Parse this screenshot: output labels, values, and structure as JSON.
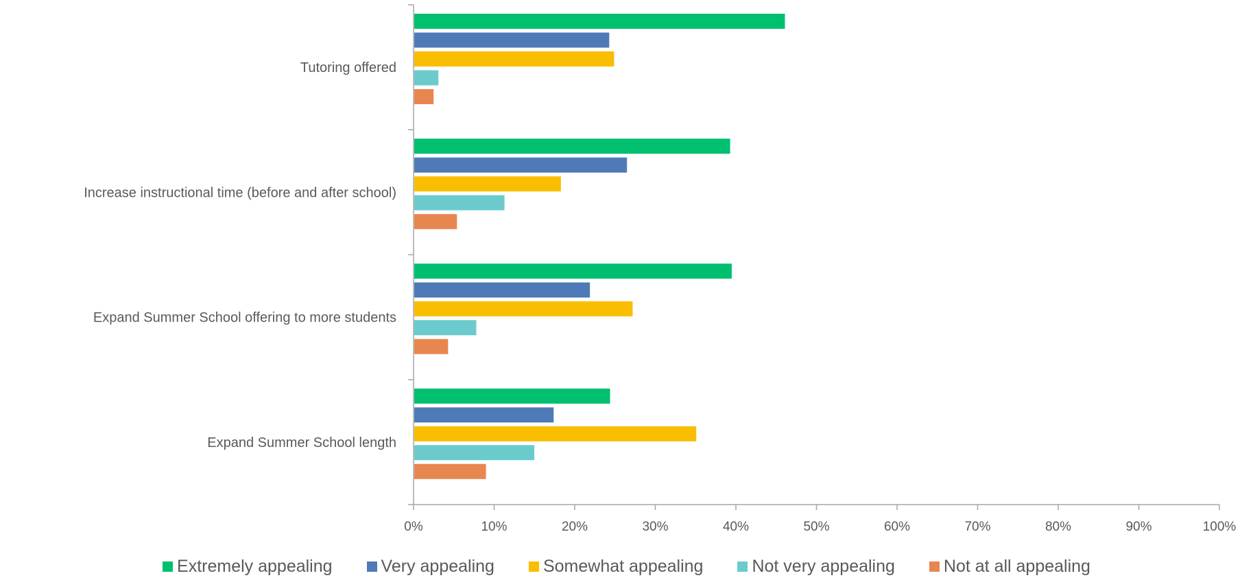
{
  "chart_data": {
    "type": "bar",
    "orientation": "horizontal",
    "categories": [
      "Tutoring offered",
      "Increase instructional time (before and after school)",
      "Expand Summer School offering to more students",
      "Expand Summer School length"
    ],
    "series": [
      {
        "name": "Extremely appealing",
        "color": "#00BF6F",
        "values": [
          46,
          39.2,
          39.4,
          24.3
        ]
      },
      {
        "name": "Very appealing",
        "color": "#4F7AB8",
        "values": [
          24.2,
          26.4,
          21.8,
          17.3
        ]
      },
      {
        "name": "Somewhat appealing",
        "color": "#F9BE00",
        "values": [
          24.8,
          18.2,
          27.1,
          35
        ]
      },
      {
        "name": "Not very appealing",
        "color": "#6BCBCC",
        "values": [
          3,
          11.2,
          7.7,
          14.9
        ]
      },
      {
        "name": "Not at all appealing",
        "color": "#E8864F",
        "values": [
          2.4,
          5.3,
          4.2,
          8.9
        ]
      }
    ],
    "xlim": [
      0,
      100
    ],
    "xticks": [
      "0%",
      "10%",
      "20%",
      "30%",
      "40%",
      "50%",
      "60%",
      "70%",
      "80%",
      "90%",
      "100%"
    ],
    "grid": false,
    "legend_position": "bottom"
  }
}
